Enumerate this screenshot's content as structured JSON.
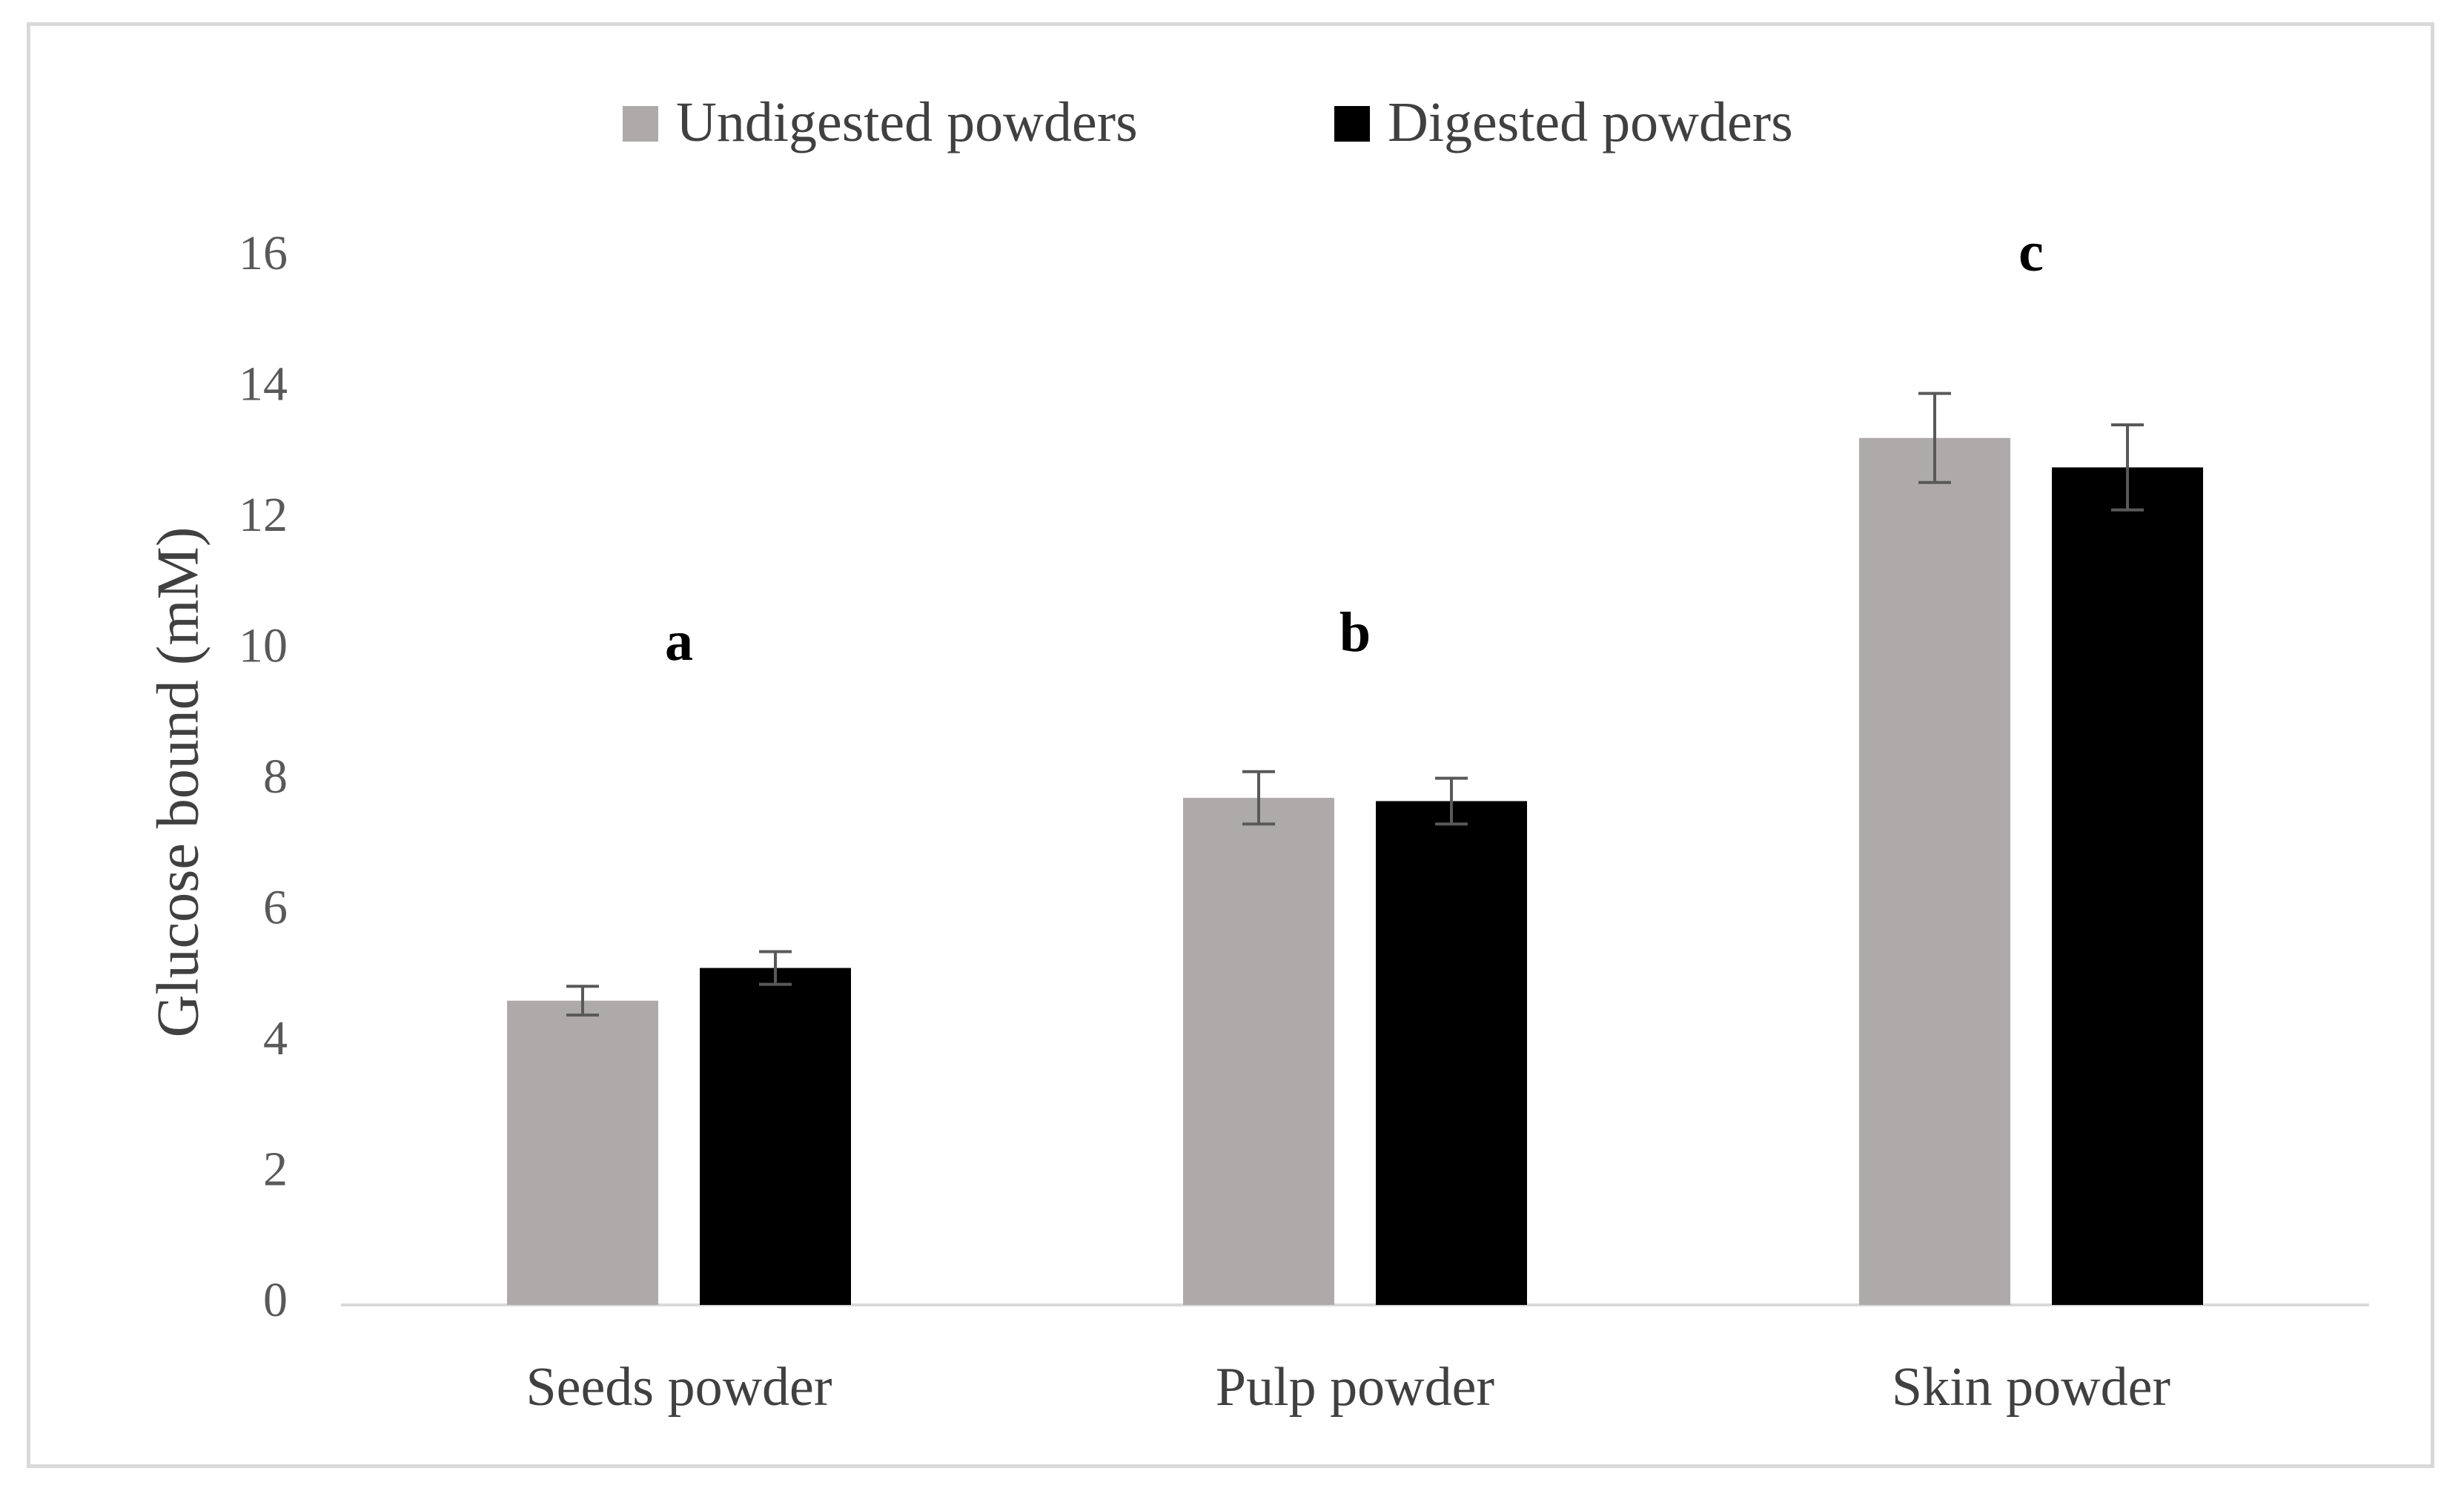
{
  "chart_data": {
    "type": "bar",
    "title": "",
    "xlabel": "",
    "ylabel": "Glucose bound (mM)",
    "ylim": [
      0,
      16
    ],
    "yticks": [
      0,
      2,
      4,
      6,
      8,
      10,
      12,
      14,
      16
    ],
    "grid": false,
    "legend_position": "top",
    "categories": [
      "Seeds powder",
      "Pulp powder",
      "Skin powder"
    ],
    "series": [
      {
        "name": "Undigested powders",
        "color": "#aeaaaa",
        "values": [
          4.65,
          7.75,
          13.25
        ],
        "errors": [
          0.22,
          0.4,
          0.68
        ]
      },
      {
        "name": "Digested powders",
        "color": "#000000",
        "values": [
          5.15,
          7.7,
          12.8
        ],
        "errors": [
          0.25,
          0.35,
          0.65
        ]
      }
    ],
    "annotations": [
      {
        "category": "Seeds powder",
        "text": "a"
      },
      {
        "category": "Pulp powder",
        "text": "b"
      },
      {
        "category": "Skin powder",
        "text": "c"
      }
    ]
  }
}
